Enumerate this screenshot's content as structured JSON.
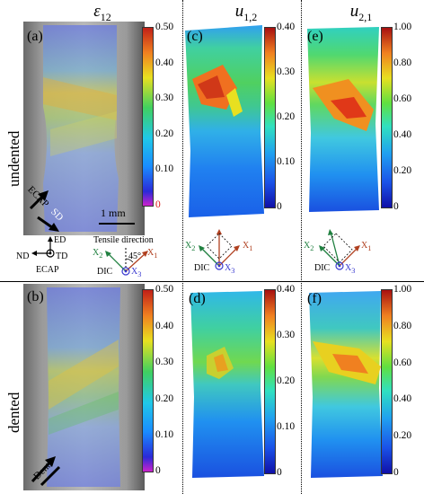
{
  "columns": {
    "c1": {
      "symbol": "ε",
      "sub": "12"
    },
    "c2": {
      "symbol": "u",
      "sub": "1,2"
    },
    "c3": {
      "symbol": "u",
      "sub": "2,1"
    }
  },
  "rows": {
    "top": "undented",
    "bottom": "dented"
  },
  "panels": {
    "a": "(a)",
    "b": "(b)",
    "c": "(c)",
    "d": "(d)",
    "e": "(e)",
    "f": "(f)"
  },
  "colorbars": {
    "strain": [
      "0.50",
      "0.40",
      "0.30",
      "0.20",
      "0.10",
      "0"
    ],
    "u12": [
      "0.40",
      "0.30",
      "0.20",
      "0.10",
      "0"
    ],
    "u21": [
      "1.00",
      "0.80",
      "0.60",
      "0.40",
      "0.20",
      "0"
    ]
  },
  "annotations": {
    "scale": "1 mm",
    "ecap": "ECAP",
    "sd": "SD",
    "dents": "Dents",
    "ed": "ED",
    "nd": "ND",
    "td": "TD",
    "ecap_label": "ECAP",
    "tensile": "Tensile direction",
    "angle": "45°",
    "x1": "X",
    "x1_sub": "1",
    "x2": "X",
    "x2_sub": "2",
    "x3": "X",
    "x3_sub": "3",
    "dic": "DIC"
  },
  "colors": {
    "red_tick": "#e01818",
    "blue_axis": "#3a3ad0",
    "brown_axis": "#b04020",
    "green_axis": "#208040"
  }
}
